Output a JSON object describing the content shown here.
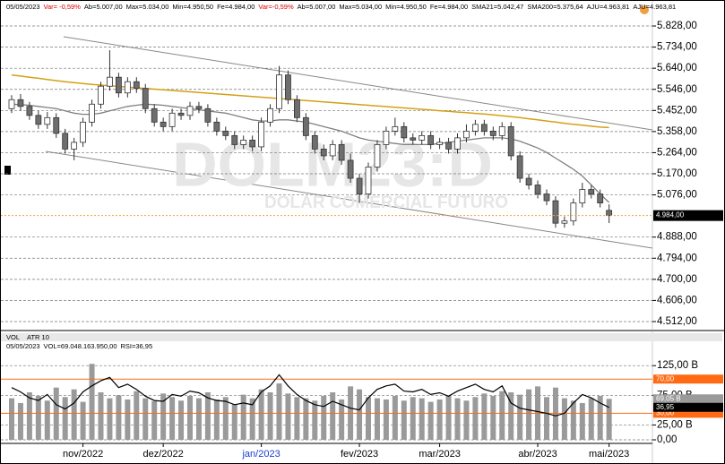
{
  "chart_data": [
    {
      "type": "candlestick",
      "header": [
        "05/05/2023",
        "Var= -0,59%",
        "Ab=5.007,00",
        "Max=5.034,00",
        "Min=4.950,50",
        "Fe=4.984,00",
        "Var=-0,59%",
        "Ab=5.007,00",
        "Max=5.034,00",
        "Min=4.950,50",
        "Fe=4.984,00",
        "SMA21=5.042,47",
        "SMA200=5.375,64",
        "AJU=4.963,81",
        "AJU=4.963,81"
      ],
      "watermark": [
        "DOLM23:D",
        "DOLAR COMERCIAL FUTURO"
      ],
      "categories": [
        null,
        null,
        null,
        null,
        null,
        null,
        null,
        null,
        "nov/2022",
        null,
        null,
        null,
        null,
        null,
        null,
        null,
        null,
        "dez/2022",
        null,
        null,
        null,
        null,
        null,
        null,
        null,
        null,
        null,
        null,
        "jan/2023",
        null,
        null,
        null,
        null,
        null,
        null,
        null,
        null,
        null,
        null,
        "fev/2023",
        null,
        null,
        null,
        null,
        null,
        null,
        null,
        null,
        "mar/2023",
        null,
        null,
        null,
        null,
        null,
        null,
        null,
        null,
        null,
        null,
        "abr/2023",
        null,
        null,
        null,
        null,
        null,
        null,
        null,
        "mai/2023"
      ],
      "open": [
        5460,
        5500,
        5470,
        5430,
        5390,
        5420,
        5350,
        5280,
        5310,
        5400,
        5480,
        5560,
        5600,
        5530,
        5580,
        5550,
        5460,
        5400,
        5380,
        5440,
        5430,
        5470,
        5460,
        5400,
        5360,
        5340,
        5300,
        5320,
        5290,
        5400,
        5460,
        5610,
        5500,
        5420,
        5340,
        5280,
        5250,
        5300,
        5230,
        5150,
        5080,
        5200,
        5300,
        5360,
        5380,
        5330,
        5320,
        5340,
        5300,
        5310,
        5280,
        5330,
        5360,
        5390,
        5360,
        5340,
        5380,
        5250,
        5150,
        5120,
        5080,
        5050,
        4950,
        4960,
        5040,
        5100,
        5080,
        5007
      ],
      "high": [
        5520,
        5525,
        5490,
        5450,
        5445,
        5440,
        5370,
        5330,
        5420,
        5500,
        5580,
        5720,
        5620,
        5600,
        5600,
        5570,
        5480,
        5420,
        5460,
        5460,
        5490,
        5490,
        5480,
        5420,
        5380,
        5360,
        5340,
        5340,
        5420,
        5480,
        5650,
        5630,
        5520,
        5440,
        5360,
        5300,
        5320,
        5320,
        5260,
        5170,
        5220,
        5320,
        5380,
        5420,
        5400,
        5350,
        5360,
        5360,
        5330,
        5330,
        5350,
        5390,
        5410,
        5410,
        5380,
        5400,
        5400,
        5270,
        5170,
        5140,
        5100,
        5070,
        4980,
        5060,
        5130,
        5120,
        5100,
        5034
      ],
      "low": [
        5440,
        5450,
        5410,
        5370,
        5370,
        5330,
        5260,
        5230,
        5290,
        5380,
        5460,
        5540,
        5510,
        5510,
        5530,
        5440,
        5380,
        5360,
        5360,
        5410,
        5410,
        5440,
        5380,
        5340,
        5320,
        5280,
        5280,
        5270,
        5270,
        5380,
        5440,
        5480,
        5400,
        5320,
        5260,
        5230,
        5230,
        5210,
        5130,
        5040,
        5060,
        5180,
        5280,
        5340,
        5310,
        5300,
        5300,
        5280,
        5280,
        5260,
        5260,
        5310,
        5340,
        5340,
        5320,
        5320,
        5230,
        5130,
        5100,
        5060,
        5030,
        4930,
        4930,
        4940,
        5020,
        5060,
        5020,
        4950.5
      ],
      "close": [
        5500,
        5470,
        5430,
        5390,
        5420,
        5350,
        5280,
        5310,
        5400,
        5480,
        5560,
        5600,
        5530,
        5580,
        5550,
        5460,
        5400,
        5380,
        5440,
        5430,
        5470,
        5460,
        5400,
        5360,
        5340,
        5300,
        5320,
        5290,
        5400,
        5460,
        5610,
        5500,
        5420,
        5340,
        5280,
        5250,
        5300,
        5230,
        5150,
        5080,
        5200,
        5300,
        5360,
        5380,
        5330,
        5320,
        5340,
        5300,
        5310,
        5280,
        5330,
        5360,
        5390,
        5360,
        5340,
        5380,
        5250,
        5150,
        5120,
        5080,
        5050,
        4950,
        4960,
        5040,
        5100,
        5080,
        5040,
        4984
      ],
      "sma21": [
        5480,
        5478,
        5475,
        5470,
        5465,
        5460,
        5450,
        5440,
        5435,
        5435,
        5440,
        5450,
        5460,
        5470,
        5475,
        5480,
        5478,
        5475,
        5470,
        5465,
        5460,
        5455,
        5450,
        5445,
        5440,
        5430,
        5420,
        5410,
        5405,
        5405,
        5410,
        5410,
        5405,
        5400,
        5390,
        5380,
        5370,
        5360,
        5345,
        5330,
        5320,
        5315,
        5310,
        5305,
        5300,
        5300,
        5300,
        5300,
        5305,
        5310,
        5315,
        5320,
        5325,
        5330,
        5330,
        5330,
        5325,
        5315,
        5300,
        5285,
        5265,
        5240,
        5215,
        5190,
        5160,
        5120,
        5080,
        5042.47
      ],
      "sma200": [
        5610,
        5605,
        5600,
        5595,
        5590,
        5585,
        5580,
        5576,
        5572,
        5568,
        5565,
        5562,
        5559,
        5556,
        5553,
        5550,
        5547,
        5544,
        5541,
        5538,
        5535,
        5532,
        5529,
        5526,
        5523,
        5520,
        5517,
        5514,
        5511,
        5508,
        5505,
        5502,
        5499,
        5496,
        5493,
        5490,
        5487,
        5484,
        5481,
        5478,
        5475,
        5472,
        5469,
        5466,
        5463,
        5460,
        5457,
        5454,
        5451,
        5448,
        5445,
        5442,
        5439,
        5436,
        5432,
        5428,
        5424,
        5420,
        5415,
        5410,
        5405,
        5400,
        5395,
        5390,
        5386,
        5382,
        5378,
        5375.64
      ],
      "up_color": "#ffffff",
      "down_color": "#6e6e6e",
      "sma21_color": "#808080",
      "sma200_color": "#d4a017",
      "last_price": {
        "value": 4984,
        "label": "4.984,00"
      },
      "ylim": [
        4484,
        5868
      ],
      "yticks": [
        {
          "value": 5828,
          "label": "5.828,00"
        },
        {
          "value": 5734,
          "label": "5.734,00"
        },
        {
          "value": 5640,
          "label": "5.640,00"
        },
        {
          "value": 5546,
          "label": "5.546,00"
        },
        {
          "value": 5452,
          "label": "5.452,00"
        },
        {
          "value": 5358,
          "label": "5.358,00"
        },
        {
          "value": 5264,
          "label": "5.264,00"
        },
        {
          "value": 5170,
          "label": "5.170,00"
        },
        {
          "value": 5076,
          "label": "5.076,00"
        },
        {
          "value": 4888,
          "label": "4.888,00"
        },
        {
          "value": 4794,
          "label": "4.794,00"
        },
        {
          "value": 4700,
          "label": "4.700,00"
        },
        {
          "value": 4606,
          "label": "4.606,00"
        },
        {
          "value": 4512,
          "label": "4.512,00"
        }
      ],
      "grid": true
    },
    {
      "type": "bar",
      "tabs": [
        "VOL",
        "ATR 10"
      ],
      "header": [
        "05/05/2023",
        "VOL=69.048.163.950,00",
        "RSI=36,95"
      ],
      "series": [
        {
          "name": "VOL",
          "color": "#9a9a9a",
          "values": [
            70,
            62,
            80,
            74,
            66,
            88,
            72,
            85,
            64,
            128,
            80,
            70,
            75,
            68,
            82,
            70,
            65,
            78,
            72,
            66,
            74,
            70,
            80,
            68,
            72,
            60,
            76,
            70,
            85,
            80,
            95,
            78,
            72,
            70,
            66,
            74,
            80,
            68,
            90,
            85,
            72,
            70,
            68,
            74,
            66,
            72,
            70,
            64,
            68,
            74,
            70,
            66,
            72,
            78,
            74,
            82,
            80,
            76,
            85,
            90,
            72,
            88,
            70,
            66,
            62,
            70,
            74,
            69.05
          ],
          "value_labels": [
            null,
            null,
            null,
            null,
            null,
            null,
            null,
            null,
            null,
            null,
            null,
            null,
            null,
            null,
            null,
            null,
            null,
            null,
            null,
            null,
            null,
            null,
            null,
            null,
            null,
            null,
            null,
            null,
            null,
            null,
            null,
            null,
            null,
            null,
            null,
            null,
            null,
            null,
            null,
            null,
            null,
            null,
            null,
            null,
            null,
            null,
            null,
            null,
            null,
            null,
            null,
            null,
            null,
            null,
            null,
            null,
            null,
            null,
            null,
            null,
            null,
            null,
            null,
            null,
            null,
            null,
            null,
            "69,05 B"
          ]
        },
        {
          "name": "RSI",
          "color": "#000000",
          "axis": "y2",
          "values": [
            60,
            55,
            48,
            45,
            52,
            40,
            35,
            42,
            55,
            62,
            68,
            72,
            60,
            64,
            58,
            50,
            45,
            44,
            52,
            50,
            56,
            54,
            48,
            45,
            44,
            40,
            42,
            40,
            55,
            62,
            75,
            62,
            52,
            45,
            40,
            38,
            44,
            40,
            36,
            34,
            48,
            58,
            62,
            64,
            56,
            55,
            58,
            52,
            54,
            50,
            56,
            60,
            64,
            58,
            55,
            62,
            42,
            36,
            34,
            32,
            30,
            27,
            30,
            42,
            52,
            48,
            42,
            36.95
          ],
          "value_labels": [
            null,
            null,
            null,
            null,
            null,
            null,
            null,
            null,
            null,
            null,
            null,
            null,
            null,
            null,
            null,
            null,
            null,
            null,
            null,
            null,
            null,
            null,
            null,
            null,
            null,
            null,
            null,
            null,
            null,
            null,
            null,
            null,
            null,
            null,
            null,
            null,
            null,
            null,
            null,
            null,
            null,
            null,
            null,
            null,
            null,
            null,
            null,
            null,
            null,
            null,
            null,
            null,
            null,
            null,
            null,
            null,
            null,
            null,
            null,
            null,
            null,
            null,
            null,
            null,
            null,
            null,
            null,
            "36,95"
          ]
        }
      ],
      "ylim": [
        0,
        160
      ],
      "yticks": [
        {
          "value": 125,
          "label": "125,00 B"
        },
        {
          "value": 75,
          "label": "75,00 B"
        },
        {
          "value": 25,
          "label": "25,00 B"
        },
        {
          "value": 0,
          "label": "0,00"
        }
      ],
      "y2lim": [
        -1,
        110
      ],
      "y2ticks": [
        {
          "value": 70,
          "label": "70,00"
        },
        {
          "value": 30,
          "label": "30,00"
        }
      ],
      "y2_color": "#ff6a13",
      "grid": true
    }
  ]
}
